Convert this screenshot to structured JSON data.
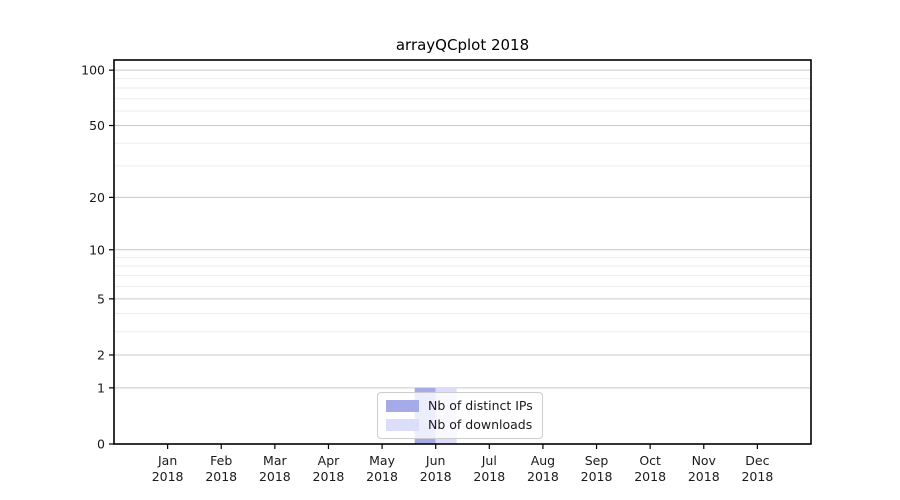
{
  "title": "arrayQCplot 2018",
  "chart_data": {
    "type": "bar",
    "title": "arrayQCplot 2018",
    "categories": [
      "Jan",
      "Feb",
      "Mar",
      "Apr",
      "May",
      "Jun",
      "Jul",
      "Aug",
      "Sep",
      "Oct",
      "Nov",
      "Dec"
    ],
    "x_year_label": "2018",
    "series": [
      {
        "name": "Nb of distinct IPs",
        "color": "#a5abe8",
        "values": [
          0,
          0,
          0,
          0,
          0,
          1,
          0,
          0,
          0,
          0,
          0,
          0
        ]
      },
      {
        "name": "Nb of downloads",
        "color": "#dcddf8",
        "values": [
          0,
          0,
          0,
          0,
          0,
          1,
          0,
          0,
          0,
          0,
          0,
          0
        ]
      }
    ],
    "yscale": "log1p",
    "ylim": [
      0,
      113.5
    ],
    "y_major_ticks": [
      0,
      1,
      2,
      5,
      10,
      20,
      50,
      100
    ],
    "y_minor_ticks": [
      3,
      4,
      6,
      7,
      8,
      9,
      30,
      40,
      60,
      70,
      80,
      90
    ],
    "grid": true,
    "legend_position": "bottom-center"
  }
}
